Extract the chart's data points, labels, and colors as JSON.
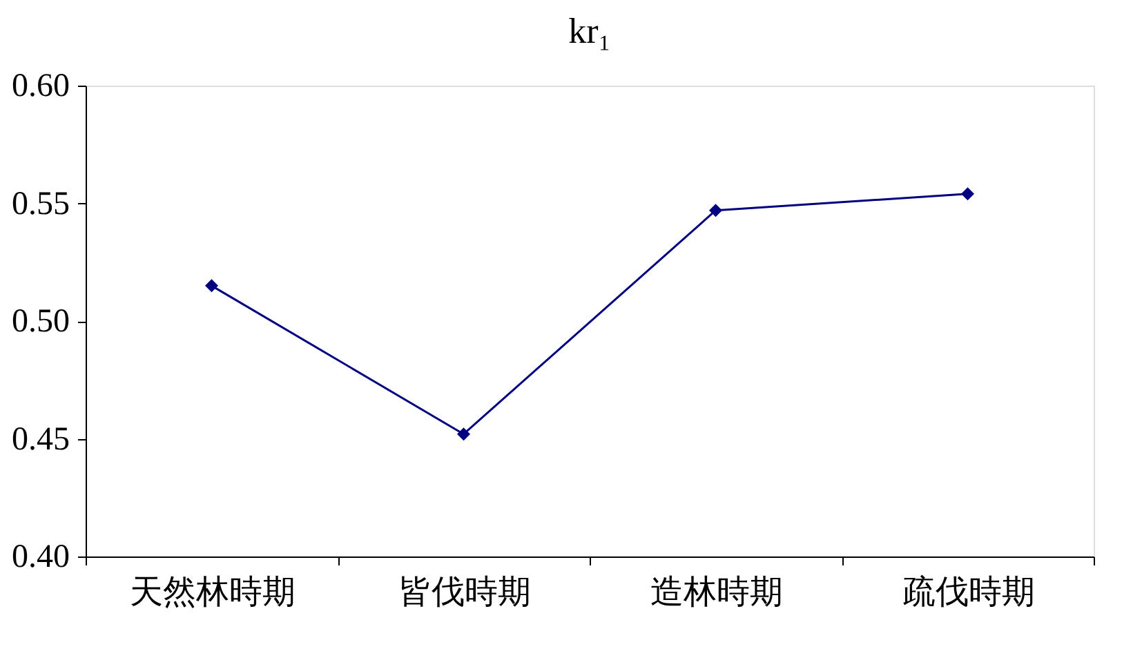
{
  "chart_data": {
    "type": "line",
    "title": "kr₁",
    "categories": [
      "天然林時期",
      "皆伐時期",
      "造林時期",
      "疏伐時期"
    ],
    "series": [
      {
        "color": "#000080",
        "values": [
          0.515,
          0.452,
          0.547,
          0.554
        ]
      }
    ],
    "ylim": [
      0.4,
      0.6
    ],
    "yticks": [
      {
        "value": 0.4,
        "label": "0.40"
      },
      0.45,
      {
        "value": 0.5,
        "label": "0.50"
      },
      0.55,
      {
        "value": 0.6,
        "label": "0.60"
      }
    ],
    "marker": "diamond",
    "line_style": "solid",
    "grid": false,
    "legend": false
  }
}
